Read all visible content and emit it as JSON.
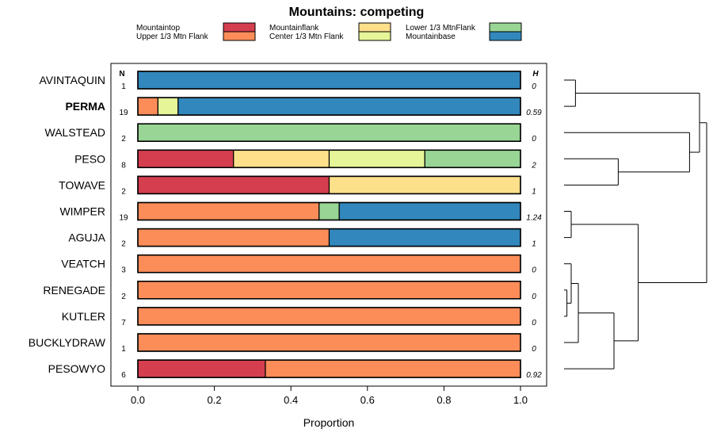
{
  "chart_data": {
    "type": "bar",
    "orientation": "horizontal",
    "stacked": true,
    "title": "Mountains: competing",
    "xlabel": "Proportion",
    "xlim": [
      0,
      1
    ],
    "xticks": [
      "0.0",
      "0.2",
      "0.4",
      "0.6",
      "0.8",
      "1.0"
    ],
    "xtick_values": [
      0,
      0.2,
      0.4,
      0.6,
      0.8,
      1.0
    ],
    "n_header": "N",
    "h_header": "H",
    "legend": [
      {
        "key": "mountaintop",
        "label": "Mountaintop",
        "color": "#d53e4f"
      },
      {
        "key": "upper",
        "label": "Upper 1/3 Mtn Flank",
        "color": "#fc8d59"
      },
      {
        "key": "mountainflank",
        "label": "Mountainflank",
        "color": "#fee08b"
      },
      {
        "key": "center",
        "label": "Center 1/3 Mtn Flank",
        "color": "#e6f598"
      },
      {
        "key": "lower",
        "label": "Lower 1/3 MtnFlank",
        "color": "#99d594"
      },
      {
        "key": "base",
        "label": "Mountainbase",
        "color": "#3288bd"
      }
    ],
    "rows": [
      {
        "name": "AVINTAQUIN",
        "bold": false,
        "n": "1",
        "h": "0",
        "segments": [
          {
            "cat": "base",
            "value": 1.0
          }
        ]
      },
      {
        "name": "PERMA",
        "bold": true,
        "n": "19",
        "h": "0.59",
        "segments": [
          {
            "cat": "upper",
            "value": 0.0526
          },
          {
            "cat": "center",
            "value": 0.0526
          },
          {
            "cat": "base",
            "value": 0.8948
          }
        ]
      },
      {
        "name": "WALSTEAD",
        "bold": false,
        "n": "2",
        "h": "0",
        "segments": [
          {
            "cat": "lower",
            "value": 1.0
          }
        ]
      },
      {
        "name": "PESO",
        "bold": false,
        "n": "8",
        "h": "2",
        "segments": [
          {
            "cat": "mountaintop",
            "value": 0.25
          },
          {
            "cat": "mountainflank",
            "value": 0.25
          },
          {
            "cat": "center",
            "value": 0.25
          },
          {
            "cat": "lower",
            "value": 0.25
          }
        ]
      },
      {
        "name": "TOWAVE",
        "bold": false,
        "n": "2",
        "h": "1",
        "segments": [
          {
            "cat": "mountaintop",
            "value": 0.5
          },
          {
            "cat": "mountainflank",
            "value": 0.5
          }
        ]
      },
      {
        "name": "WIMPER",
        "bold": false,
        "n": "19",
        "h": "1.24",
        "segments": [
          {
            "cat": "upper",
            "value": 0.4737
          },
          {
            "cat": "lower",
            "value": 0.0526
          },
          {
            "cat": "base",
            "value": 0.4737
          }
        ]
      },
      {
        "name": "AGUJA",
        "bold": false,
        "n": "2",
        "h": "1",
        "segments": [
          {
            "cat": "upper",
            "value": 0.5
          },
          {
            "cat": "base",
            "value": 0.5
          }
        ]
      },
      {
        "name": "VEATCH",
        "bold": false,
        "n": "3",
        "h": "0",
        "segments": [
          {
            "cat": "upper",
            "value": 1.0
          }
        ]
      },
      {
        "name": "RENEGADE",
        "bold": false,
        "n": "2",
        "h": "0",
        "segments": [
          {
            "cat": "upper",
            "value": 1.0
          }
        ]
      },
      {
        "name": "KUTLER",
        "bold": false,
        "n": "7",
        "h": "0",
        "segments": [
          {
            "cat": "upper",
            "value": 1.0
          }
        ]
      },
      {
        "name": "BUCKLYDRAW",
        "bold": false,
        "n": "1",
        "h": "0",
        "segments": [
          {
            "cat": "upper",
            "value": 1.0
          }
        ]
      },
      {
        "name": "PESOWYO",
        "bold": false,
        "n": "6",
        "h": "0.92",
        "segments": [
          {
            "cat": "mountaintop",
            "value": 0.3333
          },
          {
            "cat": "upper",
            "value": 0.6667
          }
        ]
      }
    ],
    "dendrogram": {
      "type": "hierarchical-clustering",
      "merges": [
        {
          "a": "AVINTAQUIN",
          "b": "PERMA",
          "height": 0.08
        },
        {
          "a": "PESO",
          "b": "TOWAVE",
          "height": 0.38
        },
        {
          "a": "WALSTEAD",
          "b": "PESO+TOWAVE",
          "height": 0.88
        },
        {
          "a": "WIMPER",
          "b": "AGUJA",
          "height": 0.05
        },
        {
          "a": "RENEGADE",
          "b": "KUTLER",
          "height": 0.02
        },
        {
          "a": "VEATCH",
          "b": "RENEGADE+KUTLER",
          "height": 0.05
        },
        {
          "a": "VEATCH+RENEGADE+KUTLER",
          "b": "BUCKLYDRAW",
          "height": 0.1
        },
        {
          "a": "VEATCH..BUCKLYDRAW",
          "b": "PESOWYO",
          "height": 0.35
        },
        {
          "a": "VEATCH..PESOWYO",
          "b": "WIMPER+AGUJA",
          "height": 0.52
        },
        {
          "a": "AVINTAQUIN+PERMA",
          "b": "WALSTEAD+PESO+TOWAVE",
          "height": 0.95
        },
        {
          "a": "top",
          "b": "bottom",
          "height": 1.0
        }
      ]
    }
  }
}
